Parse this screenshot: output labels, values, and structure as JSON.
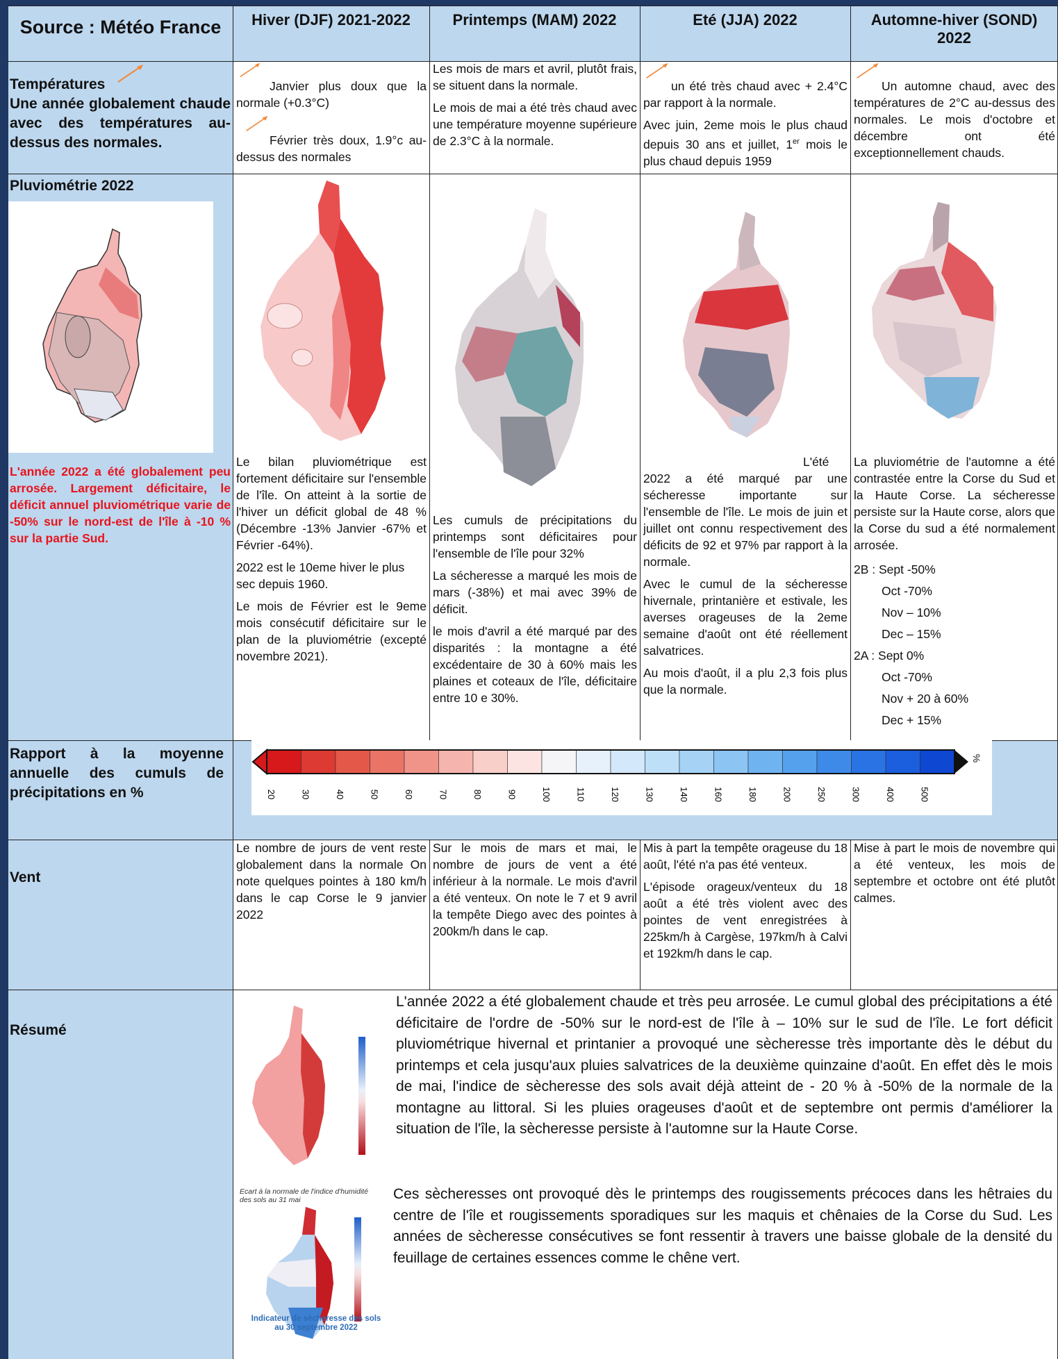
{
  "header": {
    "source": "Source : Météo France",
    "col1": "Hiver (DJF) 2021-2022",
    "col2": "Printemps (MAM) 2022",
    "col3": "Eté (JJA) 2022",
    "col4": "Automne-hiver (SOND) 2022"
  },
  "temperatures": {
    "title": "Températures",
    "subtitle": "Une année globalement chaude avec des températures au-dessus des normales.",
    "hiver_1": "Janvier plus doux que la normale (+0.3°C)",
    "hiver_2": "Février très doux, 1.9°c au-dessus des normales",
    "printemps_1": "Les mois de mars et avril, plutôt frais, se situent dans la normale.",
    "printemps_2": "Le mois de mai a été très chaud avec une température moyenne supérieure de 2.3°C à la normale.",
    "ete_1": "un été très chaud avec + 2.4°C par rapport à la normale.",
    "ete_2a": "Avec juin, 2eme mois le plus chaud depuis 30 ans et juillet, 1",
    "ete_2sup": "er",
    "ete_2b": " mois le plus chaud depuis 1959",
    "automne_1": "Un automne chaud, avec des températures de 2°C au-dessus des normales. Le mois d'octobre et décembre ont été exceptionnellement chauds."
  },
  "pluvio": {
    "title": "Pluviométrie 2022",
    "note": "L'année 2022 a été globalement peu arrosée. Largement déficitaire, le déficit annuel pluviométrique varie de -50% sur le nord-est de l'île à -10 % sur la partie Sud.",
    "hiver": [
      "Le bilan pluviométrique est fortement déficitaire sur l'ensemble de l'île. On atteint à la sortie de l'hiver un déficit global de 48 % (Décembre -13% Janvier -67% et Février -64%).",
      "2022 est le 10eme hiver le plus sec depuis 1960.",
      "Le mois de Février est le 9eme mois consécutif déficitaire sur le plan de la pluviométrie (excepté novembre 2021)."
    ],
    "printemps": [
      "Les cumuls de précipitations du printemps sont déficitaires pour l'ensemble de l'île pour 32%",
      "La sécheresse a marqué les mois de mars (-38%) et mai avec 39% de déficit.",
      "le mois d'avril a été marqué par des disparités : la montagne a été excédentaire de 30 à 60% mais les plaines et coteaux de l'île, déficitaire entre 10 e 30%."
    ],
    "ete": [
      "L'été 2022 a été marqué par une sécheresse importante sur l'ensemble de l'île. Le mois de juin et juillet ont connu respectivement des déficits de 92 et 97% par rapport à la normale.",
      "Avec le cumul de la sécheresse hivernale, printanière et estivale, les averses orageuses de la 2eme semaine d'août ont été réellement salvatrices.",
      "Au mois d'août, il a plu 2,3 fois plus que la normale."
    ],
    "automne_intro": "La pluviométrie de l'automne a été contrastée entre la Corse du Sud et la Haute Corse. La sécheresse persiste sur la Haute corse, alors que la Corse du sud a été normalement arrosée.",
    "automne_list": [
      "2B : Sept -50%",
      "Oct -70%",
      "Nov – 10%",
      "Dec – 15%",
      "2A : Sept 0%",
      "Oct -70%",
      "Nov + 20 à 60%",
      "Dec + 15%"
    ]
  },
  "rapport": {
    "title": "Rapport à la moyenne annuelle des cumuls de précipitations en %",
    "unit": "%",
    "ticks": [
      "20",
      "30",
      "40",
      "50",
      "60",
      "70",
      "80",
      "90",
      "100",
      "110",
      "120",
      "130",
      "140",
      "160",
      "180",
      "200",
      "250",
      "300",
      "400",
      "500"
    ],
    "colors": [
      "#d7191c",
      "#dc3a32",
      "#e4584a",
      "#ea7466",
      "#f0948a",
      "#f5b4ad",
      "#f9cfca",
      "#fbe4e1",
      "#f5f5f7",
      "#e6f1fb",
      "#d3e8fa",
      "#bedff8",
      "#a6d2f6",
      "#8cc4f4",
      "#70b3f1",
      "#56a1ee",
      "#3d8ae9",
      "#2a73e4",
      "#1b5ede",
      "#0e47d2"
    ]
  },
  "vent": {
    "title": "Vent",
    "hiver": "Le nombre de jours de vent reste globalement dans la normale On note quelques pointes à 180 km/h dans le cap Corse le 9 janvier 2022",
    "printemps": "Sur le mois de mars et mai, le nombre de jours de vent a été inférieur à la normale. Le mois d'avril a été venteux. On note le 7 et 9 avril la tempête Diego avec des pointes à 200km/h dans le cap.",
    "ete_1": "Mis à part la tempête orageuse du 18 août, l'été n'a pas été venteux.",
    "ete_2": "L'épisode orageux/venteux du 18 août a été très violent avec des pointes de vent enregistrées à 225km/h à Cargèse, 197km/h à Calvi et 192km/h dans le cap.",
    "automne": "Mise à part le mois de novembre qui a été venteux, les mois de septembre et octobre ont été plutôt calmes."
  },
  "resume": {
    "title": "Résumé",
    "map1_caption": "Ecart à la normale de l'indice d'humidité des sols au 31 mai",
    "map2_caption": "Indicateur de sécheresse des sols au 30 septembre 2022",
    "para1": "L'année 2022 a été globalement chaude et très peu arrosée. Le cumul global des précipitations a été déficitaire de l'ordre de -50% sur le nord-est de l'île à – 10% sur le sud de l'île. Le fort déficit pluviométrique hivernal et printanier a provoqué une sècheresse très importante dès le début du printemps et cela jusqu'aux pluies salvatrices de la deuxième quinzaine d'août. En effet dès le mois de mai, l'indice de sècheresse des sols avait déjà atteint de - 20 % à -50% de la normale de la montagne au littoral. Si les pluies orageuses d'août et de septembre ont permis d'améliorer la situation de l'île, la sècheresse persiste à l'automne sur la Haute Corse.",
    "para2": "Ces sècheresses ont provoqué dès le printemps des rougissements précoces dans les hêtraies du centre de l'île et rougissements sporadiques sur les maquis et chênaies de la Corse du Sud. Les années de sècheresse consécutives se font ressentir à travers une baisse globale de la densité du feuillage de certaines essences comme le chêne vert."
  }
}
